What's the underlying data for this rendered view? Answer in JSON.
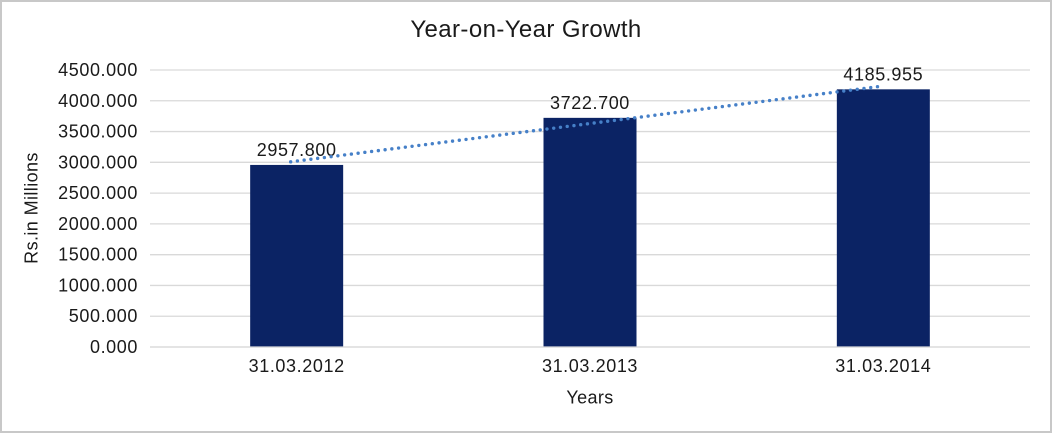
{
  "chart_data": {
    "type": "bar",
    "title": "Year-on-Year Growth",
    "categories": [
      "31.03.2012",
      "31.03.2013",
      "31.03.2014"
    ],
    "values": [
      2957.8,
      3722.7,
      4185.955
    ],
    "data_labels": [
      "2957.800",
      "3722.700",
      "4185.955"
    ],
    "xlabel": "Years",
    "ylabel": "Rs.in Millions",
    "ylim": [
      0,
      4500
    ],
    "ytick_step": 500,
    "ytick_labels": [
      "4500.000",
      "4000.000",
      "3500.000",
      "3000.000",
      "2500.000",
      "2000.000",
      "1500.000",
      "1000.000",
      "500.000",
      "0.000"
    ],
    "grid": true,
    "legend_position": "none",
    "bar_color": "#0b2364",
    "trendline": {
      "type": "linear",
      "style": "dotted",
      "color": "#4680c8"
    },
    "gridline_color": "#d9d9d9",
    "axisline_color": "#d9d9d9",
    "text_color": "#1a1a1a",
    "border_color": "#c8c8c8",
    "background": "#ffffff"
  }
}
